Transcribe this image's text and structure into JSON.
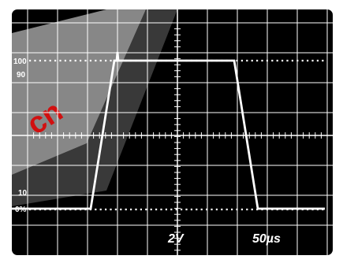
{
  "scope": {
    "labels": {
      "level_100": "100",
      "level_90": "90",
      "level_10": "10",
      "level_0": "0%",
      "volts_per_div": "2V",
      "time_per_div": "50µs"
    },
    "watermark_text": "cn"
  },
  "colors": {
    "screen": "#000000",
    "trace": "#ffffff",
    "watermark": "#d11111"
  }
}
